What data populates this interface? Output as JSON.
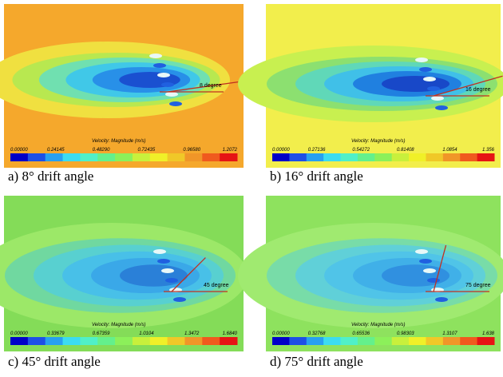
{
  "panels": [
    {
      "caption": "a) 8° drift angle",
      "colorbar_title": "Velocity: Magnitude (m/s)",
      "colorbar_labels": [
        "0.00000",
        "0.24145",
        "0.48290",
        "0.72435",
        "0.96580",
        "1.2072"
      ],
      "angle_label": "8 degree"
    },
    {
      "caption": "b) 16° drift angle",
      "colorbar_title": "Velocity: Magnitude (m/s)",
      "colorbar_labels": [
        "0.00000",
        "0.27136",
        "0.54272",
        "0.81408",
        "1.0854",
        "1.356"
      ],
      "angle_label": "16 degree"
    },
    {
      "caption": "c) 45° drift angle",
      "colorbar_title": "Velocity: Magnitude (m/s)",
      "colorbar_labels": [
        "0.00000",
        "0.33679",
        "0.67359",
        "1.0104",
        "1.3472",
        "1.6840"
      ],
      "angle_label": "45 degree"
    },
    {
      "caption": "d) 75° drift angle",
      "colorbar_title": "Velocity: Magnitude (m/s)",
      "colorbar_labels": [
        "0.00000",
        "0.32768",
        "0.65536",
        "0.98303",
        "1.3107",
        "1.638"
      ],
      "angle_label": "75 degree"
    }
  ]
}
